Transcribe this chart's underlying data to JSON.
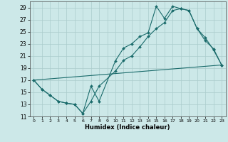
{
  "xlabel": "Humidex (Indice chaleur)",
  "background_color": "#cce8e8",
  "grid_color": "#aacccc",
  "line_color": "#1a6b6b",
  "xlim": [
    -0.5,
    23.5
  ],
  "ylim": [
    11,
    30
  ],
  "xticks": [
    0,
    1,
    2,
    3,
    4,
    5,
    6,
    7,
    8,
    9,
    10,
    11,
    12,
    13,
    14,
    15,
    16,
    17,
    18,
    19,
    20,
    21,
    22,
    23
  ],
  "yticks": [
    11,
    13,
    15,
    17,
    19,
    21,
    23,
    25,
    27,
    29
  ],
  "line1_x": [
    0,
    1,
    2,
    3,
    4,
    5,
    6,
    7,
    8,
    10,
    11,
    12,
    13,
    14,
    15,
    16,
    17,
    18,
    19,
    20,
    21,
    22,
    23
  ],
  "line1_y": [
    17,
    15.5,
    14.5,
    13.5,
    13.2,
    13.0,
    11.5,
    16.0,
    13.5,
    20.2,
    22.3,
    23.0,
    24.2,
    24.8,
    29.2,
    27.2,
    29.2,
    28.8,
    28.5,
    25.5,
    23.5,
    22.2,
    19.5
  ],
  "line2_x": [
    0,
    1,
    2,
    3,
    4,
    5,
    6,
    7,
    8,
    10,
    11,
    12,
    13,
    14,
    15,
    16,
    17,
    18,
    19,
    20,
    21,
    22,
    23
  ],
  "line2_y": [
    17,
    15.5,
    14.5,
    13.5,
    13.2,
    13.0,
    11.5,
    13.5,
    16.0,
    18.5,
    20.3,
    21.0,
    22.5,
    24.2,
    25.5,
    26.5,
    28.5,
    28.8,
    28.5,
    25.5,
    24.0,
    22.0,
    19.5
  ],
  "line3_x": [
    0,
    23
  ],
  "line3_y": [
    17,
    19.5
  ]
}
